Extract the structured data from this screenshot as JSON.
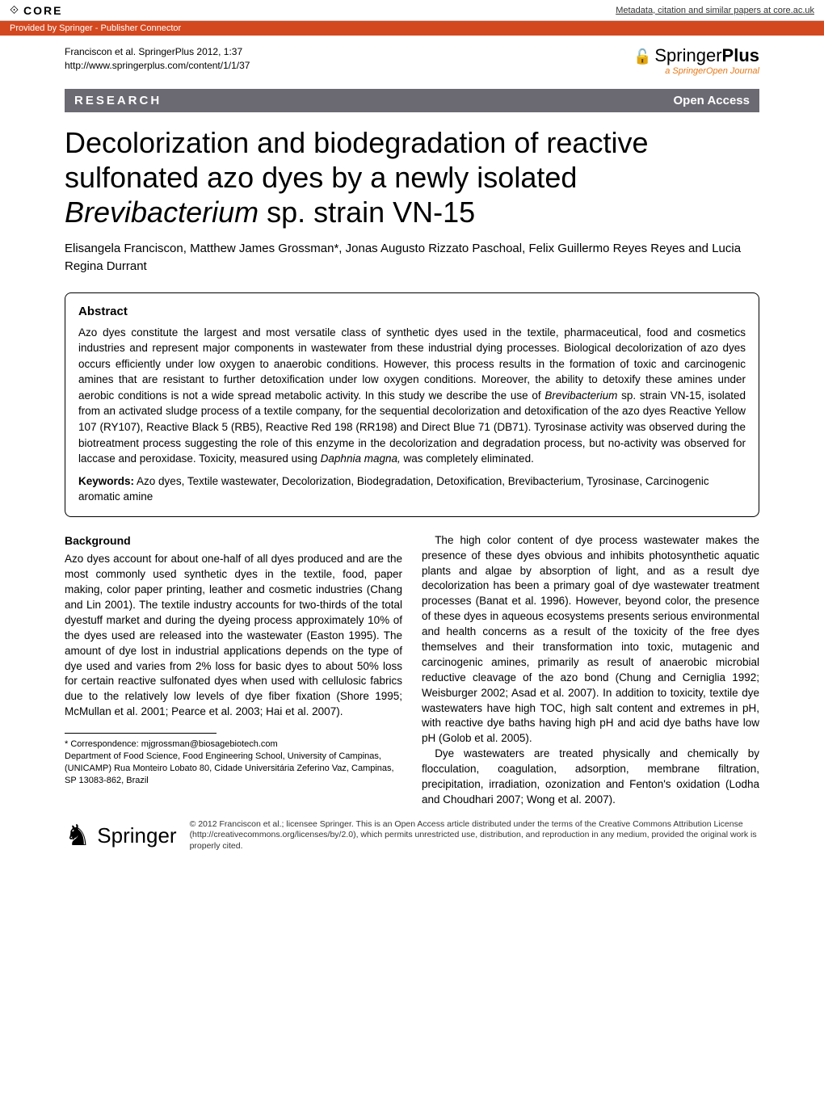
{
  "core": {
    "logo": "CORE",
    "link_text": "Metadata, citation and similar papers at core.ac.uk",
    "provider": "Provided by Springer - Publisher Connector"
  },
  "citation": {
    "line1": "Franciscon et al. SpringerPlus 2012, 1:37",
    "line2": "http://www.springerplus.com/content/1/1/37"
  },
  "journal": {
    "name_prefix": "Springer",
    "name_suffix": "Plus",
    "tagline": "a SpringerOpen Journal"
  },
  "article_type_bar": {
    "type": "RESEARCH",
    "access": "Open Access"
  },
  "title": {
    "line1": "Decolorization and biodegradation of reactive sulfonated azo dyes by a newly isolated ",
    "italic": "Brevibacterium",
    "line3": " sp. strain VN-15"
  },
  "authors": "Elisangela Franciscon, Matthew James Grossman*, Jonas Augusto Rizzato Paschoal, Felix Guillermo Reyes Reyes and Lucia Regina Durrant",
  "abstract": {
    "heading": "Abstract",
    "text_part1": "Azo dyes constitute the largest and most versatile class of synthetic dyes used in the textile, pharmaceutical, food and cosmetics industries and represent major components in wastewater from these industrial dying processes. Biological decolorization of azo dyes occurs efficiently under low oxygen to anaerobic conditions. However, this process results in the formation of toxic and carcinogenic amines that are resistant to further detoxification under low oxygen conditions. Moreover, the ability to detoxify these amines under aerobic conditions is not a wide spread metabolic activity. In this study we describe the use of ",
    "text_italic1": "Brevibacterium",
    "text_part2": " sp. strain VN-15, isolated from an activated sludge process of a textile company, for the sequential decolorization and detoxification of the azo dyes Reactive Yellow 107 (RY107), Reactive Black 5 (RB5), Reactive Red 198 (RR198) and Direct Blue 71 (DB71). Tyrosinase activity was observed during the biotreatment process suggesting the role of this enzyme in the decolorization and degradation process, but no-activity was observed for laccase and peroxidase. Toxicity, measured using ",
    "text_italic2": "Daphnia magna,",
    "text_part3": " was completely eliminated.",
    "keywords_label": "Keywords:",
    "keywords": " Azo dyes, Textile wastewater, Decolorization, Biodegradation, Detoxification, Brevibacterium, Tyrosinase, Carcinogenic aromatic amine"
  },
  "body": {
    "background_head": "Background",
    "left_p1": "Azo dyes account for about one-half of all dyes produced and are the most commonly used synthetic dyes in the textile, food, paper making, color paper printing, leather and cosmetic industries (Chang and Lin 2001). The textile industry accounts for two-thirds of the total dyestuff market and during the dyeing process approximately 10% of the dyes used are released into the wastewater (Easton 1995). The amount of dye lost in industrial applications depends on the type of dye used and varies from 2% loss for basic dyes to about 50% loss for certain reactive sulfonated dyes when used with cellulosic fabrics due to the relatively low levels of dye fiber fixation (Shore 1995; McMullan et al. 2001; Pearce et al. 2003; Hai et al. 2007).",
    "right_p1": "The high color content of dye process wastewater makes the presence of these dyes obvious and inhibits photosynthetic aquatic plants and algae by absorption of light, and as a result dye decolorization has been a primary goal of dye wastewater treatment processes (Banat et al. 1996). However, beyond color, the presence of these dyes in aqueous ecosystems presents serious environmental and health concerns as a result of the toxicity of the free dyes themselves and their transformation into toxic, mutagenic and carcinogenic amines, primarily as result of anaerobic microbial reductive cleavage of the azo bond (Chung and Cerniglia 1992; Weisburger 2002; Asad et al. 2007). In addition to toxicity, textile dye wastewaters have high TOC, high salt content and extremes in pH, with reactive dye baths having high pH and acid dye baths have low pH (Golob et al. 2005).",
    "right_p2": "Dye wastewaters are treated physically and chemically by flocculation, coagulation, adsorption, membrane filtration, precipitation, irradiation, ozonization and Fenton's oxidation (Lodha and Choudhari 2007; Wong et al. 2007)."
  },
  "correspondence": {
    "email_label": "Correspondence: ",
    "email": "mjgrossman@biosagebiotech.com",
    "affiliation": "Department of Food Science, Food Engineering School, University of Campinas, (UNICAMP) Rua Monteiro Lobato 80, Cidade Universitária Zeferino Vaz, Campinas, SP 13083-862, Brazil"
  },
  "footer": {
    "springer": "Springer",
    "license": "© 2012 Franciscon et al.; licensee Springer. This is an Open Access article distributed under the terms of the Creative Commons Attribution License (http://creativecommons.org/licenses/by/2.0), which permits unrestricted use, distribution, and reproduction in any medium, provided the original work is properly cited."
  },
  "colors": {
    "provider_bg": "#d4481f",
    "bar_bg": "#6b6a73",
    "accent": "#e67817"
  }
}
